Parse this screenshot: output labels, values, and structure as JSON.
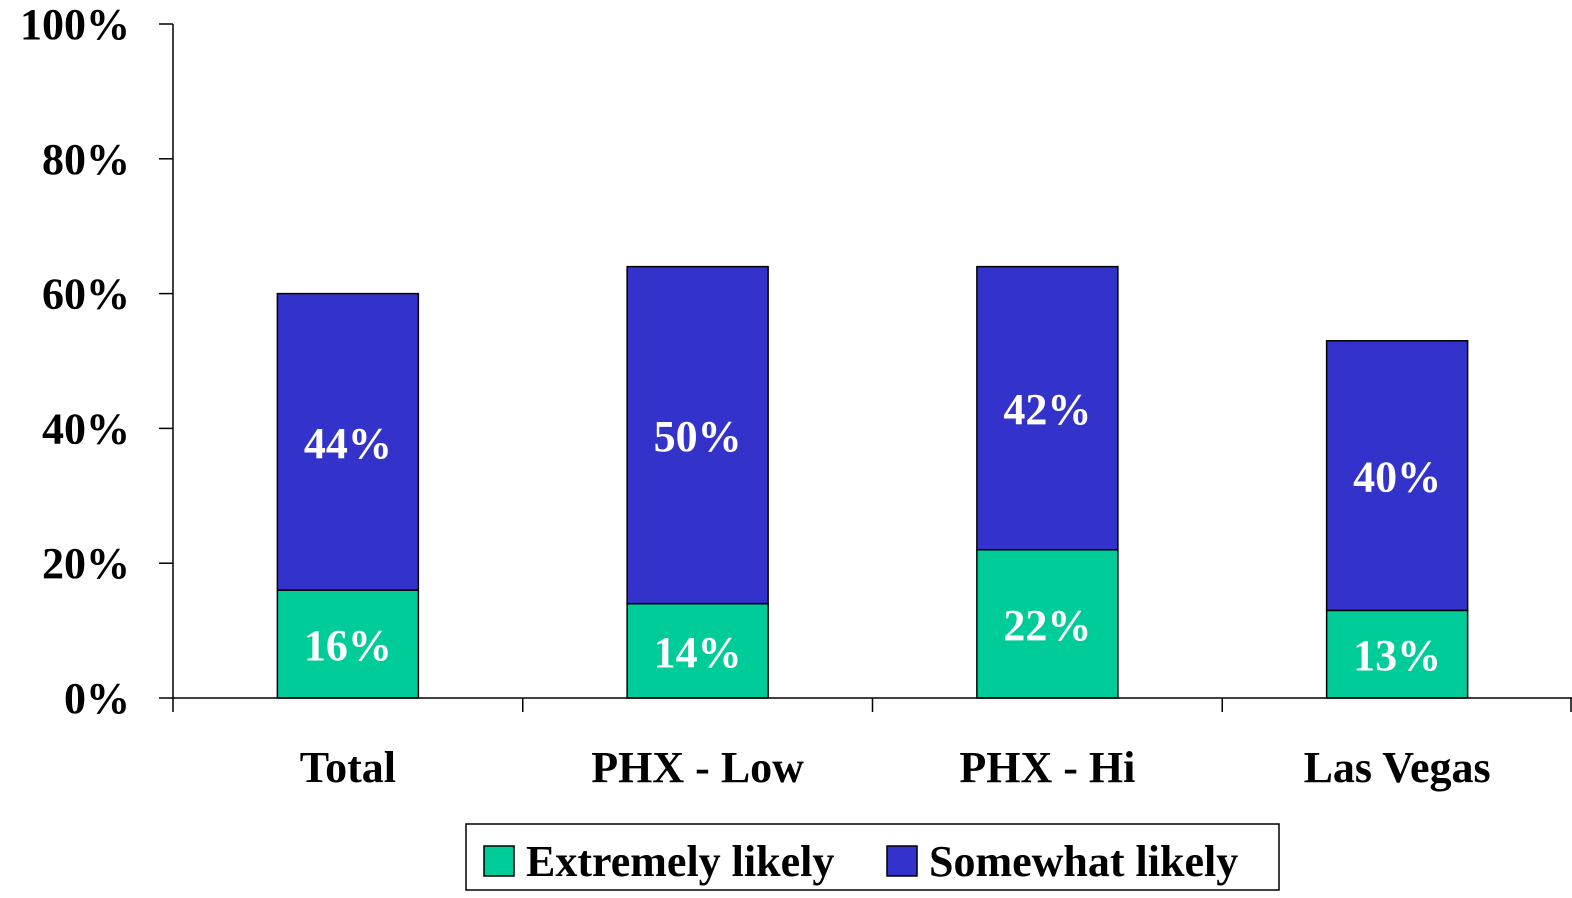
{
  "chart_data": {
    "type": "bar",
    "stacked": true,
    "categories": [
      "Total",
      "PHX - Low",
      "PHX - Hi",
      "Las Vegas"
    ],
    "series": [
      {
        "name": "Extremely likely",
        "values": [
          16,
          14,
          22,
          13
        ],
        "labels": [
          "16%",
          "14%",
          "22%",
          "13%"
        ],
        "color": "#00CC99"
      },
      {
        "name": "Somewhat likely",
        "values": [
          44,
          50,
          42,
          40
        ],
        "labels": [
          "44%",
          "50%",
          "42%",
          "40%"
        ],
        "color": "#3333CC"
      }
    ],
    "ylim": [
      0,
      100
    ],
    "yticks": [
      0,
      20,
      40,
      60,
      80,
      100
    ],
    "ytick_labels": [
      "0%",
      "20%",
      "40%",
      "60%",
      "80%",
      "100%"
    ],
    "title": "",
    "xlabel": "",
    "ylabel": "",
    "grid": false,
    "legend_position": "bottom"
  }
}
